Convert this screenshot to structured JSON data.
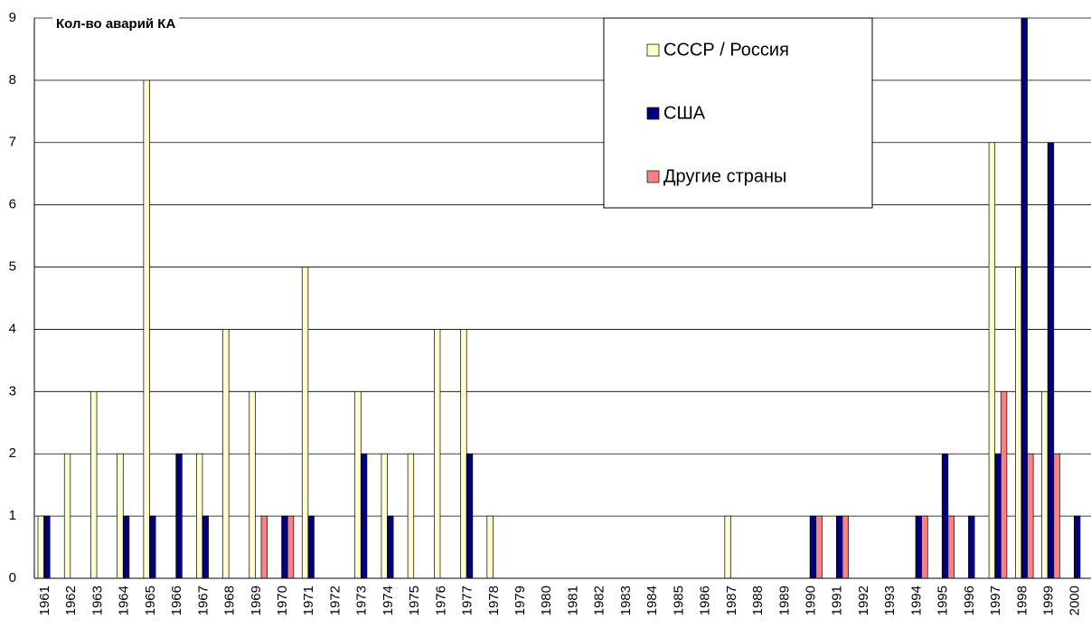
{
  "chart_data": {
    "type": "bar",
    "title": "Кол-во аварий КА",
    "categories": [
      "1961",
      "1962",
      "1963",
      "1964",
      "1965",
      "1966",
      "1967",
      "1968",
      "1969",
      "1970",
      "1971",
      "1972",
      "1973",
      "1974",
      "1975",
      "1976",
      "1977",
      "1978",
      "1979",
      "1980",
      "1981",
      "1982",
      "1983",
      "1984",
      "1985",
      "1986",
      "1987",
      "1988",
      "1989",
      "1990",
      "1991",
      "1992",
      "1993",
      "1994",
      "1995",
      "1996",
      "1997",
      "1998",
      "1999",
      "2000"
    ],
    "series": [
      {
        "name": "СССР / Россия",
        "color": "#ffffcc",
        "values": [
          1,
          2,
          3,
          2,
          8,
          0,
          2,
          4,
          3,
          0,
          5,
          0,
          3,
          2,
          2,
          4,
          4,
          1,
          0,
          0,
          0,
          0,
          0,
          0,
          0,
          0,
          1,
          0,
          0,
          0,
          0,
          0,
          0,
          0,
          0,
          0,
          7,
          5,
          3,
          0
        ]
      },
      {
        "name": "США",
        "color": "#000080",
        "values": [
          1,
          0,
          0,
          1,
          1,
          2,
          1,
          0,
          0,
          1,
          1,
          0,
          2,
          1,
          0,
          0,
          2,
          0,
          0,
          0,
          0,
          0,
          0,
          0,
          0,
          0,
          0,
          0,
          0,
          1,
          1,
          0,
          0,
          1,
          2,
          1,
          2,
          9,
          7,
          1
        ]
      },
      {
        "name": "Другие страны",
        "color": "#ff8080",
        "values": [
          0,
          0,
          0,
          0,
          0,
          0,
          0,
          0,
          1,
          1,
          0,
          0,
          0,
          0,
          0,
          0,
          0,
          0,
          0,
          0,
          0,
          0,
          0,
          0,
          0,
          0,
          0,
          0,
          0,
          1,
          1,
          0,
          0,
          1,
          1,
          0,
          3,
          2,
          2,
          0
        ]
      }
    ],
    "ylim": [
      0,
      9
    ],
    "yticks": [
      0,
      1,
      2,
      3,
      4,
      5,
      6,
      7,
      8,
      9
    ],
    "grid": true,
    "legend": "top-right"
  }
}
